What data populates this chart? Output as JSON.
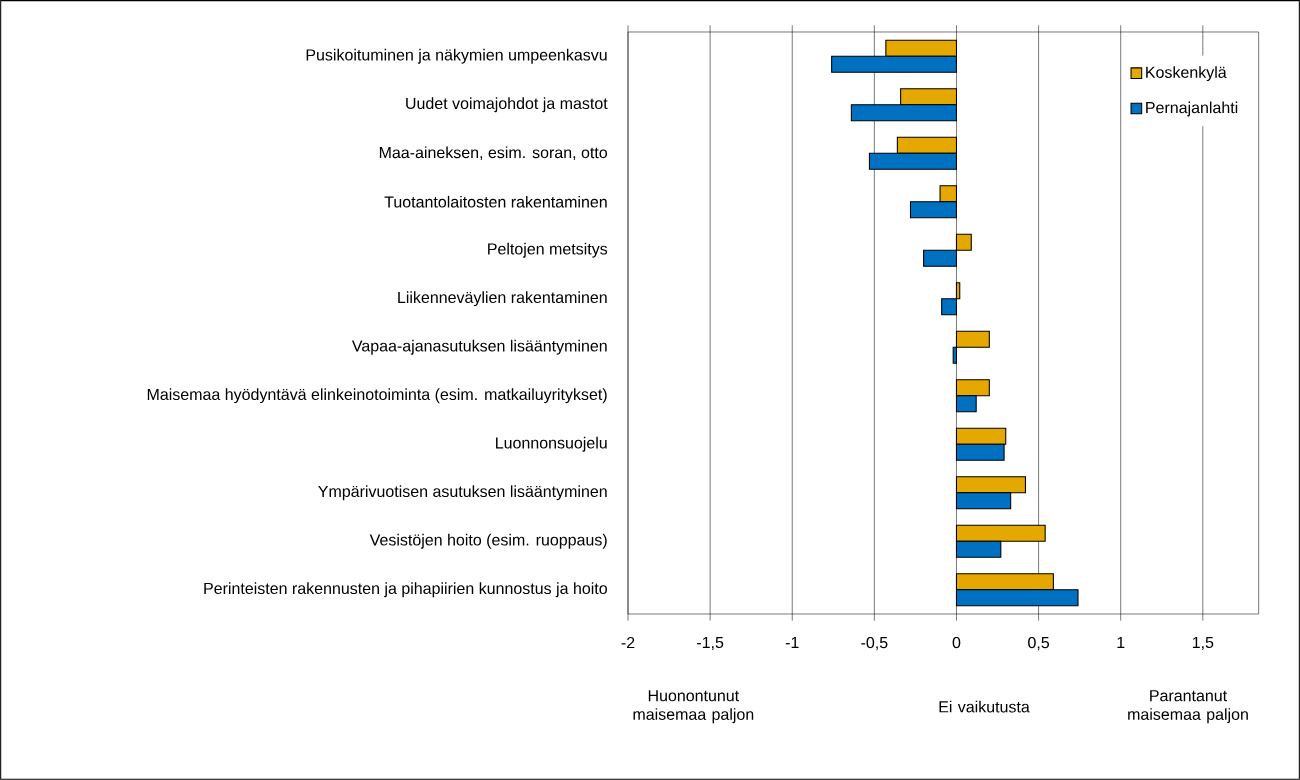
{
  "chart_data": {
    "type": "bar",
    "orientation": "horizontal",
    "categories": [
      "Pusikoituminen ja näkymien umpeenkasvu",
      "Uudet voimajohdot ja mastot",
      "Maa-aineksen, esim. soran, otto",
      "Tuotantolaitosten rakentaminen",
      "Peltojen metsitys",
      "Liikenneväylien rakentaminen",
      "Vapaa-ajanasutuksen lisääntyminen",
      "Maisemaa hyödyntävä elinkeinotoiminta (esim. matkailuyritykset)",
      "Luonnonsuojelu",
      "Ympärivuotisen asutuksen lisääntyminen",
      "Vesistöjen hoito (esim. ruoppaus)",
      "Perinteisten rakennusten ja pihapiirien kunnostus ja hoito"
    ],
    "series": [
      {
        "name": "Koskenkylä",
        "color": "#e5a800",
        "values": [
          -0.43,
          -0.34,
          -0.36,
          -0.1,
          0.09,
          0.02,
          0.2,
          0.2,
          0.3,
          0.42,
          0.54,
          0.59
        ]
      },
      {
        "name": "Pernajanlahti",
        "color": "#0070c0",
        "values": [
          -0.76,
          -0.64,
          -0.53,
          -0.28,
          -0.2,
          -0.09,
          -0.02,
          0.12,
          0.29,
          0.33,
          0.27,
          0.74
        ]
      }
    ],
    "xlim": [
      -2,
      1.84
    ],
    "xticks": [
      -2,
      {
        "value": -1.5,
        "label": "-1,5"
      },
      -1,
      {
        "value": -0.5,
        "label": "-0,5"
      },
      0,
      {
        "value": 0.5,
        "label": "0,5"
      },
      1,
      {
        "value": 1.5,
        "label": "1,5"
      }
    ],
    "grid": "x",
    "legend": "top right",
    "annotations": [
      "Huonontunut maisemaa paljon",
      "Ei vaikutusta",
      "Parantanut maisemaa paljon"
    ]
  }
}
